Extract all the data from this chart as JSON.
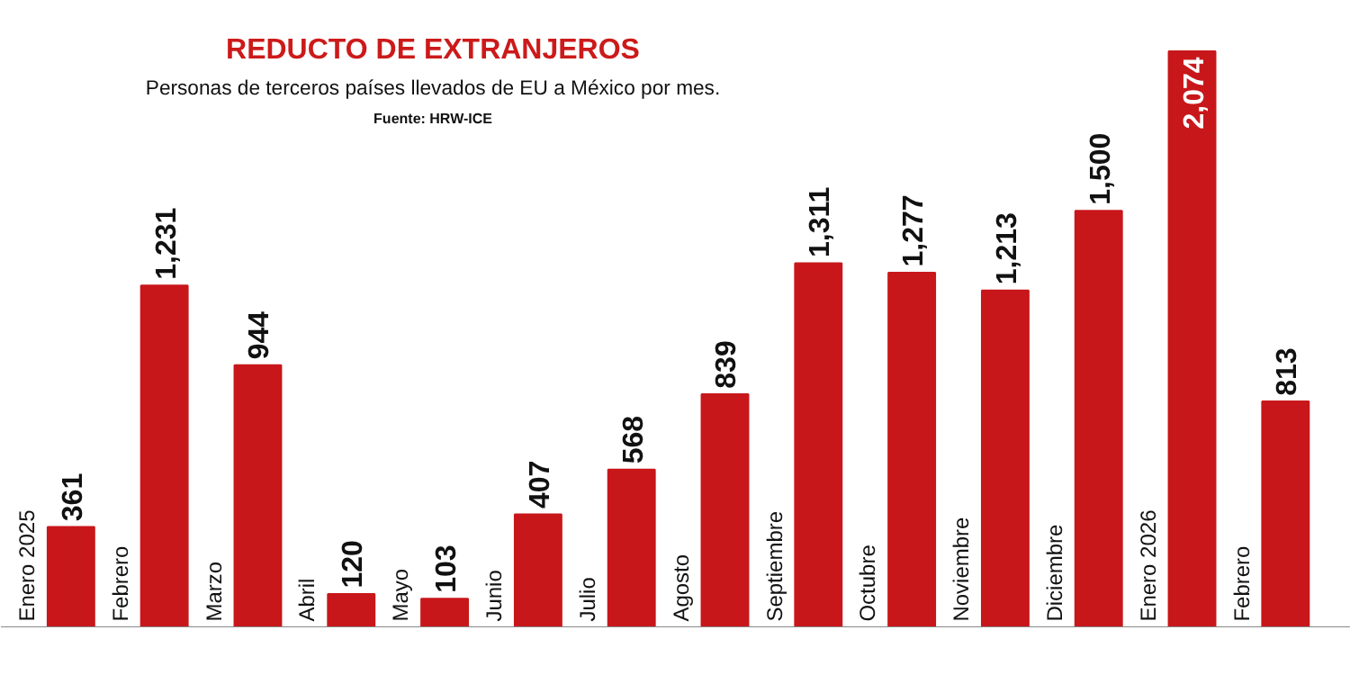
{
  "chart_data": {
    "type": "bar",
    "title": "REDUCTO DE EXTRANJEROS",
    "subtitle": "Personas de terceros países llevados de EU a México por mes.",
    "annotations": [
      "Fuente: HRW-ICE"
    ],
    "categories": [
      "Enero 2025",
      "Febrero",
      "Marzo",
      "Abril",
      "Mayo",
      "Junio",
      "Julio",
      "Agosto",
      "Septiembre",
      "Octubre",
      "Noviembre",
      "Diciembre",
      "Enero 2026",
      "Febrero"
    ],
    "values": [
      361,
      1231,
      944,
      120,
      103,
      407,
      568,
      839,
      1311,
      1277,
      1213,
      1500,
      2074,
      813
    ],
    "color": "#c8171b",
    "value_labels": [
      "361",
      "1,231",
      "944",
      "120",
      "103",
      "407",
      "568",
      "839",
      "1,311",
      "1,277",
      "1,213",
      "1,500",
      "2,074",
      "813"
    ]
  }
}
